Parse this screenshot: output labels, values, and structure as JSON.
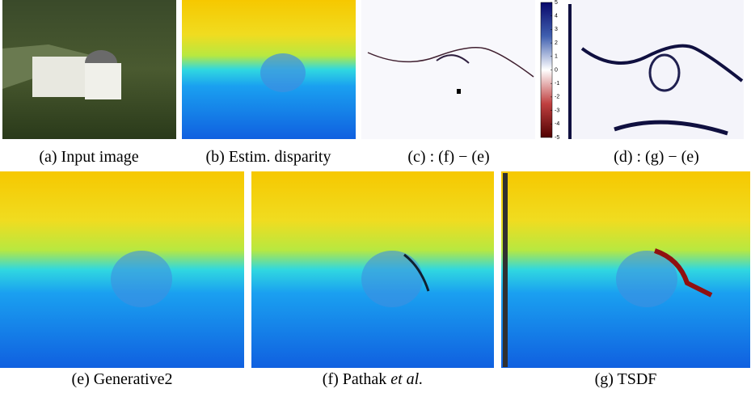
{
  "top_row": [
    {
      "caption": "(a) Input image"
    },
    {
      "caption": "(b) Estim. disparity"
    },
    {
      "caption": "(c) : (f) − (e)"
    },
    {
      "caption": "(d) : (g) − (e)"
    }
  ],
  "colorbar": {
    "ticks": [
      5,
      4,
      3,
      2,
      1,
      0,
      -1,
      -2,
      -3,
      -4,
      -5
    ]
  },
  "bottom_row": [
    {
      "caption": "(e) Generative2"
    },
    {
      "caption_parts": [
        "(f) Pathak ",
        "et al.",
        ""
      ]
    },
    {
      "caption": "(g) TSDF"
    }
  ]
}
